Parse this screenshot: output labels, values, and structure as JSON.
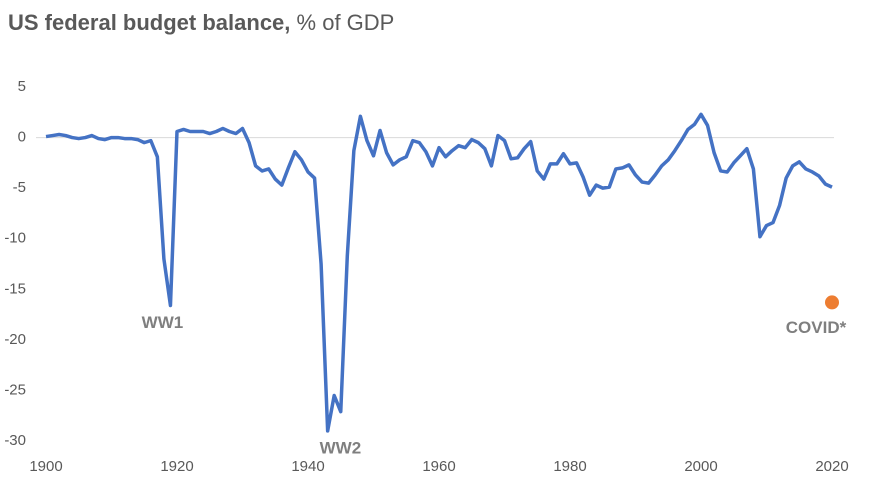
{
  "chart_data": {
    "type": "line",
    "title": "US federal budget balance,",
    "subtitle": "% of GDP",
    "x": [
      1900,
      1901,
      1902,
      1903,
      1904,
      1905,
      1906,
      1907,
      1908,
      1909,
      1910,
      1911,
      1912,
      1913,
      1914,
      1915,
      1916,
      1917,
      1918,
      1919,
      1920,
      1921,
      1922,
      1923,
      1924,
      1925,
      1926,
      1927,
      1928,
      1929,
      1930,
      1931,
      1932,
      1933,
      1934,
      1935,
      1936,
      1937,
      1938,
      1939,
      1940,
      1941,
      1942,
      1943,
      1944,
      1945,
      1946,
      1947,
      1948,
      1949,
      1950,
      1951,
      1952,
      1953,
      1954,
      1955,
      1956,
      1957,
      1958,
      1959,
      1960,
      1961,
      1962,
      1963,
      1964,
      1965,
      1966,
      1967,
      1968,
      1969,
      1970,
      1971,
      1972,
      1973,
      1974,
      1975,
      1976,
      1977,
      1978,
      1979,
      1980,
      1981,
      1982,
      1983,
      1984,
      1985,
      1986,
      1987,
      1988,
      1989,
      1990,
      1991,
      1992,
      1993,
      1994,
      1995,
      1996,
      1997,
      1998,
      1999,
      2000,
      2001,
      2002,
      2003,
      2004,
      2005,
      2006,
      2007,
      2008,
      2009,
      2010,
      2011,
      2012,
      2013,
      2014,
      2015,
      2016,
      2017,
      2018,
      2019,
      2020
    ],
    "series": [
      {
        "name": "Budget balance",
        "color": "#4472c4",
        "values": [
          0.1,
          0.2,
          0.3,
          0.2,
          0.0,
          -0.1,
          0.0,
          0.2,
          -0.1,
          -0.2,
          0.0,
          0.0,
          -0.1,
          -0.1,
          -0.2,
          -0.5,
          -0.3,
          -1.9,
          -12.0,
          -16.6,
          0.6,
          0.8,
          0.6,
          0.6,
          0.6,
          0.4,
          0.6,
          0.9,
          0.6,
          0.4,
          0.9,
          -0.5,
          -2.8,
          -3.3,
          -3.1,
          -4.1,
          -4.7,
          -3.0,
          -1.4,
          -2.2,
          -3.4,
          -4.0,
          -12.5,
          -29.0,
          -25.5,
          -27.1,
          -11.7,
          -1.3,
          2.1,
          -0.3,
          -1.8,
          0.7,
          -1.5,
          -2.7,
          -2.2,
          -1.9,
          -0.3,
          -0.5,
          -1.4,
          -2.8,
          -1.0,
          -1.9,
          -1.3,
          -0.8,
          -1.0,
          -0.2,
          -0.5,
          -1.1,
          -2.8,
          0.2,
          -0.3,
          -2.1,
          -2.0,
          -1.1,
          -0.4,
          -3.3,
          -4.1,
          -2.6,
          -2.6,
          -1.6,
          -2.6,
          -2.5,
          -3.9,
          -5.7,
          -4.7,
          -5.0,
          -4.9,
          -3.1,
          -3.0,
          -2.7,
          -3.7,
          -4.4,
          -4.5,
          -3.7,
          -2.8,
          -2.2,
          -1.3,
          -0.3,
          0.8,
          1.3,
          2.3,
          1.2,
          -1.5,
          -3.3,
          -3.4,
          -2.5,
          -1.8,
          -1.1,
          -3.1,
          -9.8,
          -8.7,
          -8.4,
          -6.7,
          -4.0,
          -2.8,
          -2.4,
          -3.1,
          -3.4,
          -3.8,
          -4.6,
          -4.9
        ]
      }
    ],
    "points": [
      {
        "name": "COVID*",
        "color": "#ed7d31",
        "x": 2020,
        "value": -16.3
      }
    ],
    "annotations": [
      {
        "text": "WW1",
        "x": 1919,
        "y": -16.6
      },
      {
        "text": "WW2",
        "x": 1943,
        "y": -29.0
      }
    ],
    "xlim": [
      1900,
      2020
    ],
    "xticks": [
      1900,
      1920,
      1940,
      1960,
      1980,
      2000,
      2020
    ],
    "ylim": [
      -30,
      5
    ],
    "yticks": [
      5,
      0,
      -5,
      -10,
      -15,
      -20,
      -25,
      -30
    ],
    "grid": false
  }
}
